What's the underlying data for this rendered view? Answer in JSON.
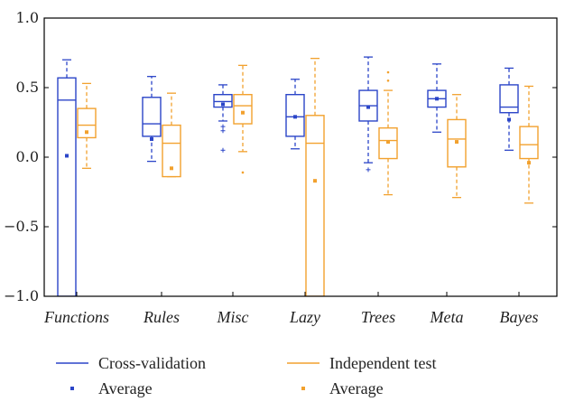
{
  "chart_data": {
    "type": "box",
    "title": "",
    "xlabel": "",
    "ylabel": "",
    "ylim": [
      -1.0,
      1.0
    ],
    "yticks": [
      -1.0,
      -0.5,
      0.0,
      0.5,
      1.0
    ],
    "ytick_labels": [
      "−1.0",
      "−0.5",
      "0.0",
      "0.5",
      "1.0"
    ],
    "categories": [
      "Functions",
      "Rules",
      "Misc",
      "Lazy",
      "Trees",
      "Meta",
      "Bayes"
    ],
    "series": [
      {
        "name": "Cross-validation",
        "color": "#2b45c8",
        "average_label": "Average",
        "boxes": [
          {
            "q1": -1.0,
            "median": 0.41,
            "q3": 0.57,
            "whisker_low": -1.0,
            "whisker_high": 0.7,
            "mean": 0.01,
            "outliers": []
          },
          {
            "q1": 0.15,
            "median": 0.24,
            "q3": 0.43,
            "whisker_low": -0.03,
            "whisker_high": 0.58,
            "mean": 0.13,
            "outliers": []
          },
          {
            "q1": 0.36,
            "median": 0.4,
            "q3": 0.45,
            "whisker_low": 0.26,
            "whisker_high": 0.52,
            "mean": 0.38,
            "outliers": [
              0.22,
              0.19,
              0.05
            ]
          },
          {
            "q1": 0.15,
            "median": 0.29,
            "q3": 0.45,
            "whisker_low": 0.06,
            "whisker_high": 0.56,
            "mean": 0.29,
            "outliers": []
          },
          {
            "q1": 0.26,
            "median": 0.37,
            "q3": 0.48,
            "whisker_low": -0.04,
            "whisker_high": 0.72,
            "mean": 0.36,
            "outliers": [
              -0.09
            ]
          },
          {
            "q1": 0.36,
            "median": 0.42,
            "q3": 0.48,
            "whisker_low": 0.18,
            "whisker_high": 0.67,
            "mean": 0.42,
            "outliers": []
          },
          {
            "q1": 0.32,
            "median": 0.36,
            "q3": 0.52,
            "whisker_low": 0.05,
            "whisker_high": 0.64,
            "mean": 0.27,
            "outliers": []
          }
        ]
      },
      {
        "name": "Independent test",
        "color": "#f2a12e",
        "average_label": "Average",
        "boxes": [
          {
            "q1": 0.14,
            "median": 0.23,
            "q3": 0.35,
            "whisker_low": -0.08,
            "whisker_high": 0.53,
            "mean": 0.18,
            "outliers": []
          },
          {
            "q1": -0.14,
            "median": 0.1,
            "q3": 0.23,
            "whisker_low": -0.14,
            "whisker_high": 0.46,
            "mean": -0.08,
            "outliers": []
          },
          {
            "q1": 0.24,
            "median": 0.37,
            "q3": 0.45,
            "whisker_low": 0.04,
            "whisker_high": 0.66,
            "mean": 0.32,
            "outliers": [
              -0.11
            ]
          },
          {
            "q1": -1.0,
            "median": 0.1,
            "q3": 0.3,
            "whisker_low": -1.0,
            "whisker_high": 0.71,
            "mean": -0.17,
            "outliers": []
          },
          {
            "q1": -0.01,
            "median": 0.12,
            "q3": 0.21,
            "whisker_low": -0.27,
            "whisker_high": 0.48,
            "mean": 0.11,
            "outliers": [
              0.61,
              0.55
            ]
          },
          {
            "q1": -0.07,
            "median": 0.13,
            "q3": 0.27,
            "whisker_low": -0.29,
            "whisker_high": 0.45,
            "mean": 0.11,
            "outliers": []
          },
          {
            "q1": -0.01,
            "median": 0.09,
            "q3": 0.22,
            "whisker_low": -0.33,
            "whisker_high": 0.51,
            "mean": -0.04,
            "outliers": []
          }
        ]
      }
    ],
    "legend": {
      "position": "bottom",
      "entries": [
        {
          "label": "Cross-validation",
          "kind": "line",
          "series": 0
        },
        {
          "label": "Independent test",
          "kind": "line",
          "series": 1
        },
        {
          "label": "Average",
          "kind": "dot",
          "series": 0
        },
        {
          "label": "Average",
          "kind": "dot",
          "series": 1
        }
      ]
    }
  }
}
